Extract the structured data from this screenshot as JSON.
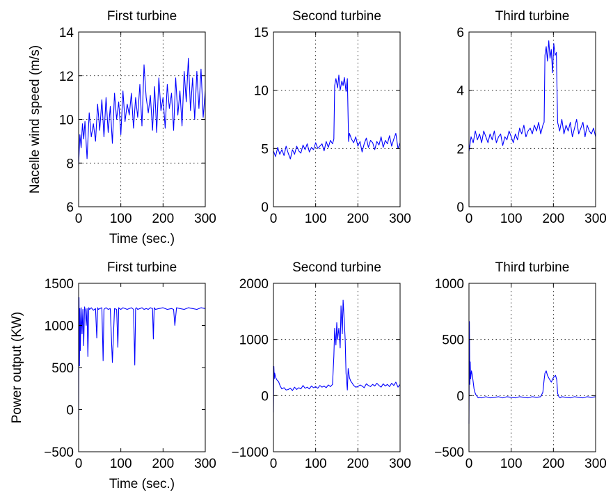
{
  "figure": {
    "line_color": "#0000ff"
  },
  "chart_data": [
    {
      "type": "line",
      "title": "First turbine",
      "xlabel": "Time (sec.)",
      "ylabel": "Nacelle wind speed (m/s)",
      "xlim": [
        0,
        300
      ],
      "ylim": [
        6,
        14
      ],
      "xticks": [
        0,
        100,
        200,
        300
      ],
      "yticks": [
        6,
        8,
        10,
        12,
        14
      ],
      "xtick_labels": [
        "0",
        "100",
        "200",
        "300"
      ],
      "ytick_labels": [
        "6",
        "8",
        "10",
        "12",
        "14"
      ],
      "grid": true,
      "x": [
        0,
        3,
        6,
        9,
        12,
        15,
        20,
        25,
        30,
        35,
        40,
        45,
        50,
        55,
        60,
        65,
        70,
        75,
        80,
        85,
        90,
        95,
        100,
        105,
        110,
        115,
        120,
        125,
        130,
        135,
        140,
        145,
        150,
        155,
        160,
        165,
        170,
        175,
        180,
        185,
        190,
        195,
        200,
        205,
        210,
        215,
        220,
        225,
        230,
        235,
        240,
        245,
        250,
        255,
        260,
        265,
        270,
        275,
        280,
        285,
        290,
        295,
        300
      ],
      "y": [
        7.9,
        9.3,
        8.7,
        9.8,
        9.1,
        9.9,
        8.2,
        10.3,
        9.2,
        9.8,
        9.0,
        10.7,
        9.5,
        10.9,
        9.2,
        11.0,
        9.4,
        10.6,
        8.9,
        11.2,
        10.0,
        10.8,
        9.3,
        11.3,
        9.9,
        10.7,
        10.2,
        11.2,
        9.6,
        11.0,
        10.1,
        11.6,
        9.7,
        12.5,
        11.0,
        10.3,
        11.1,
        9.5,
        11.5,
        9.4,
        11.9,
        10.4,
        11.0,
        9.6,
        11.6,
        10.5,
        11.2,
        9.5,
        11.9,
        10.2,
        11.3,
        9.7,
        12.2,
        10.8,
        12.8,
        10.4,
        11.9,
        10.0,
        12.2,
        10.5,
        12.3,
        10.1,
        11.3
      ]
    },
    {
      "type": "line",
      "title": "Second turbine",
      "xlabel": "",
      "ylabel": "",
      "xlim": [
        0,
        300
      ],
      "ylim": [
        0,
        15
      ],
      "xticks": [
        0,
        100,
        200,
        300
      ],
      "yticks": [
        0,
        5,
        10,
        15
      ],
      "xtick_labels": [
        "0",
        "100",
        "200",
        "300"
      ],
      "ytick_labels": [
        "0",
        "5",
        "10",
        "15"
      ],
      "grid": true,
      "x": [
        0,
        5,
        10,
        15,
        20,
        25,
        30,
        35,
        40,
        45,
        50,
        55,
        60,
        65,
        70,
        75,
        80,
        85,
        90,
        95,
        100,
        105,
        110,
        115,
        120,
        125,
        130,
        135,
        140,
        143,
        145,
        148,
        152,
        155,
        158,
        162,
        165,
        168,
        172,
        175,
        178,
        180,
        185,
        190,
        195,
        200,
        205,
        210,
        215,
        220,
        225,
        230,
        235,
        240,
        245,
        250,
        255,
        260,
        265,
        270,
        275,
        280,
        285,
        290,
        295,
        300
      ],
      "y": [
        4.8,
        4.3,
        5.1,
        4.5,
        4.9,
        4.4,
        5.2,
        4.6,
        4.1,
        4.9,
        4.5,
        5.2,
        4.8,
        4.6,
        5.3,
        4.9,
        5.4,
        4.7,
        5.1,
        4.9,
        5.5,
        5.0,
        5.2,
        5.4,
        4.8,
        5.6,
        5.1,
        5.7,
        5.4,
        5.8,
        10.4,
        11.0,
        10.2,
        11.3,
        10.0,
        10.8,
        10.4,
        11.1,
        9.9,
        11.0,
        5.6,
        6.3,
        5.8,
        5.5,
        6.0,
        5.2,
        5.6,
        4.7,
        5.4,
        5.9,
        5.1,
        5.7,
        5.5,
        4.9,
        5.6,
        5.3,
        6.0,
        5.1,
        5.7,
        5.4,
        6.1,
        5.2,
        5.8,
        6.3,
        5.0,
        5.5
      ]
    },
    {
      "type": "line",
      "title": "Third turbine",
      "xlabel": "",
      "ylabel": "",
      "xlim": [
        0,
        300
      ],
      "ylim": [
        0,
        6
      ],
      "xticks": [
        0,
        100,
        200,
        300
      ],
      "yticks": [
        0,
        2,
        4,
        6
      ],
      "xtick_labels": [
        "0",
        "100",
        "200",
        "300"
      ],
      "ytick_labels": [
        "0",
        "2",
        "4",
        "6"
      ],
      "grid": true,
      "x": [
        0,
        5,
        10,
        15,
        20,
        25,
        30,
        35,
        40,
        45,
        50,
        55,
        60,
        65,
        70,
        75,
        80,
        85,
        90,
        95,
        100,
        105,
        110,
        115,
        120,
        125,
        130,
        135,
        140,
        145,
        150,
        155,
        160,
        165,
        170,
        175,
        178,
        180,
        183,
        186,
        189,
        192,
        195,
        198,
        201,
        204,
        207,
        210,
        215,
        220,
        225,
        230,
        235,
        240,
        245,
        250,
        255,
        260,
        265,
        270,
        275,
        280,
        285,
        290,
        295,
        300
      ],
      "y": [
        1.9,
        2.4,
        2.2,
        2.6,
        2.3,
        2.5,
        2.2,
        2.6,
        2.4,
        2.2,
        2.5,
        2.3,
        2.6,
        2.2,
        2.4,
        2.5,
        2.1,
        2.4,
        2.3,
        2.6,
        2.4,
        2.2,
        2.5,
        2.3,
        2.7,
        2.5,
        2.8,
        2.4,
        2.6,
        2.7,
        2.5,
        2.8,
        2.6,
        2.9,
        2.5,
        2.8,
        2.9,
        5.2,
        5.5,
        5.0,
        5.7,
        5.1,
        5.4,
        4.6,
        5.6,
        5.2,
        5.3,
        2.9,
        2.6,
        3.0,
        2.5,
        2.8,
        2.6,
        2.9,
        2.4,
        2.7,
        3.0,
        2.5,
        2.7,
        2.9,
        2.4,
        2.8,
        2.6,
        2.5,
        2.7,
        2.4
      ]
    },
    {
      "type": "line",
      "title": "First turbine",
      "xlabel": "Time (sec.)",
      "ylabel": "Power output (KW)",
      "xlim": [
        0,
        300
      ],
      "ylim": [
        -500,
        1500
      ],
      "xticks": [
        0,
        100,
        200,
        300
      ],
      "yticks": [
        -500,
        0,
        500,
        1000,
        1500
      ],
      "xtick_labels": [
        "0",
        "100",
        "200",
        "300"
      ],
      "ytick_labels": [
        "−500",
        "0",
        "500",
        "1000",
        "1500"
      ],
      "grid": false,
      "x": [
        0,
        1,
        2,
        3,
        4,
        6,
        8,
        10,
        12,
        14,
        16,
        18,
        20,
        22,
        24,
        26,
        30,
        35,
        40,
        43,
        45,
        47,
        50,
        55,
        58,
        60,
        62,
        65,
        70,
        75,
        80,
        85,
        90,
        93,
        95,
        97,
        100,
        105,
        110,
        115,
        120,
        125,
        130,
        133,
        135,
        137,
        140,
        145,
        150,
        155,
        160,
        165,
        170,
        175,
        177,
        179,
        182,
        190,
        200,
        210,
        220,
        225,
        228,
        232,
        240,
        250,
        260,
        270,
        280,
        290,
        300
      ],
      "y": [
        -120,
        1330,
        520,
        1200,
        700,
        1210,
        900,
        1190,
        760,
        1220,
        1180,
        1000,
        1200,
        630,
        1210,
        1190,
        1210,
        1180,
        1200,
        850,
        1210,
        1190,
        1200,
        1210,
        580,
        1190,
        1200,
        1210,
        1190,
        1200,
        560,
        1200,
        1190,
        740,
        1210,
        1200,
        1190,
        1210,
        1200,
        1190,
        1200,
        1210,
        1190,
        530,
        1200,
        1210,
        1190,
        1200,
        1210,
        1190,
        1200,
        1190,
        1210,
        1200,
        840,
        1210,
        1190,
        1200,
        1210,
        1190,
        1200,
        1190,
        1000,
        1210,
        1200,
        1190,
        1210,
        1200,
        1190,
        1210,
        1200
      ]
    },
    {
      "type": "line",
      "title": "Second turbine",
      "xlabel": "",
      "ylabel": "",
      "xlim": [
        0,
        300
      ],
      "ylim": [
        -1000,
        2000
      ],
      "xticks": [
        0,
        100,
        200,
        300
      ],
      "yticks": [
        -1000,
        0,
        1000,
        2000
      ],
      "xtick_labels": [
        "0",
        "100",
        "200",
        "300"
      ],
      "ytick_labels": [
        "−1000",
        "0",
        "1000",
        "2000"
      ],
      "grid": true,
      "x": [
        0,
        1,
        2,
        3,
        5,
        8,
        12,
        16,
        20,
        25,
        30,
        35,
        40,
        45,
        50,
        55,
        60,
        65,
        70,
        75,
        80,
        85,
        90,
        95,
        100,
        105,
        110,
        115,
        120,
        125,
        130,
        135,
        140,
        143,
        145,
        148,
        150,
        152,
        155,
        158,
        160,
        163,
        165,
        168,
        170,
        172,
        175,
        177,
        180,
        183,
        186,
        190,
        195,
        200,
        205,
        210,
        215,
        220,
        225,
        230,
        235,
        240,
        245,
        250,
        255,
        260,
        265,
        270,
        275,
        280,
        285,
        290,
        295,
        300
      ],
      "y": [
        -300,
        520,
        300,
        400,
        330,
        280,
        250,
        170,
        120,
        140,
        100,
        110,
        130,
        90,
        150,
        110,
        140,
        120,
        180,
        130,
        150,
        120,
        170,
        140,
        160,
        130,
        180,
        150,
        170,
        140,
        190,
        160,
        200,
        700,
        1200,
        900,
        1300,
        1000,
        1200,
        850,
        1600,
        1100,
        1700,
        1300,
        1000,
        400,
        100,
        480,
        320,
        260,
        230,
        180,
        150,
        160,
        190,
        170,
        140,
        210,
        180,
        160,
        200,
        170,
        220,
        180,
        150,
        210,
        170,
        200,
        160,
        220,
        180,
        240,
        150,
        200
      ]
    },
    {
      "type": "line",
      "title": "Third turbine",
      "xlabel": "",
      "ylabel": "",
      "xlim": [
        0,
        300
      ],
      "ylim": [
        -500,
        1000
      ],
      "xticks": [
        0,
        100,
        200,
        300
      ],
      "yticks": [
        -500,
        0,
        500,
        1000
      ],
      "xtick_labels": [
        "0",
        "100",
        "200",
        "300"
      ],
      "ytick_labels": [
        "−500",
        "0",
        "500",
        "1000"
      ],
      "grid": true,
      "x": [
        0,
        1,
        2,
        3,
        4,
        6,
        8,
        10,
        12,
        14,
        16,
        18,
        20,
        22,
        25,
        30,
        40,
        50,
        60,
        70,
        80,
        90,
        100,
        110,
        120,
        130,
        140,
        150,
        160,
        170,
        175,
        178,
        180,
        183,
        186,
        190,
        195,
        200,
        205,
        208,
        210,
        213,
        216,
        220,
        230,
        240,
        250,
        260,
        270,
        280,
        290,
        300
      ],
      "y": [
        -250,
        660,
        100,
        300,
        150,
        220,
        180,
        120,
        60,
        30,
        10,
        0,
        -10,
        -20,
        -15,
        -20,
        -10,
        -20,
        -15,
        -10,
        -20,
        -10,
        -15,
        -20,
        -10,
        -15,
        -20,
        -10,
        -15,
        -10,
        30,
        140,
        200,
        220,
        180,
        150,
        120,
        160,
        180,
        140,
        20,
        -10,
        -20,
        -10,
        -15,
        -20,
        -10,
        -15,
        -20,
        -10,
        -15,
        -10
      ]
    }
  ]
}
